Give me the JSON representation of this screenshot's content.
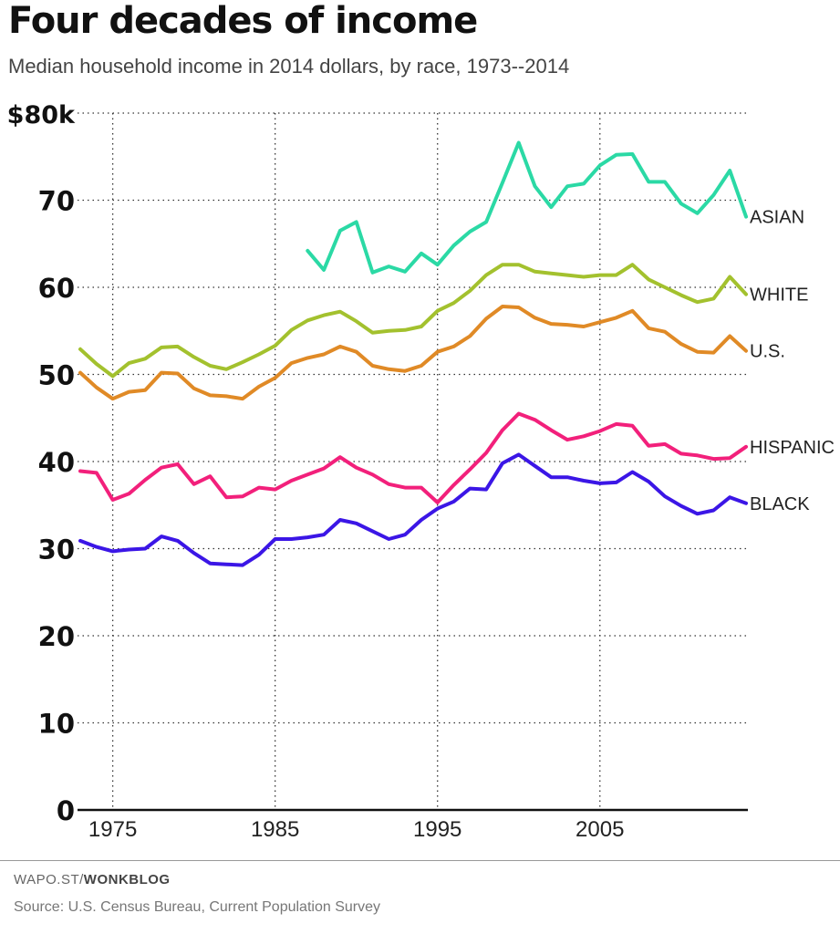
{
  "title": "Four decades of income",
  "subtitle": "Median household income in 2014 dollars, by race, 1973--2014",
  "footer": {
    "credit_prefix": "WAPO.ST/",
    "credit_bold": "WONKBLOG",
    "source": "Source: U.S. Census Bureau, Current Population Survey"
  },
  "chart_data": {
    "type": "line",
    "title": "Four decades of income",
    "subtitle": "Median household income in 2014 dollars, by race, 1973--2014",
    "xlabel": "",
    "ylabel": "",
    "xlim": [
      1973,
      2014
    ],
    "ylim": [
      0,
      80
    ],
    "grid": true,
    "legend": "direct labels at line ends (right)",
    "x_ticks": [
      1975,
      1985,
      1995,
      2005
    ],
    "x_tick_labels": [
      "1975",
      "1985",
      "1995",
      "2005"
    ],
    "y_ticks": [
      0,
      10,
      20,
      30,
      40,
      50,
      60,
      70,
      80
    ],
    "y_tick_labels": [
      "0",
      "10",
      "20",
      "30",
      "40",
      "50",
      "60",
      "70",
      "$80k"
    ],
    "series": [
      {
        "name": "ASIAN",
        "color": "#2bd9a5",
        "x": [
          1987,
          1988,
          1989,
          1990,
          1991,
          1992,
          1993,
          1994,
          1995,
          1996,
          1997,
          1998,
          1999,
          2000,
          2001,
          2002,
          2003,
          2004,
          2005,
          2006,
          2007,
          2008,
          2009,
          2010,
          2011,
          2012,
          2013,
          2014
        ],
        "values": [
          64.2,
          62.0,
          66.5,
          67.5,
          61.7,
          62.4,
          61.8,
          63.9,
          62.6,
          64.8,
          66.4,
          67.5,
          72.0,
          76.6,
          71.6,
          69.2,
          71.6,
          71.9,
          74.0,
          75.2,
          75.3,
          72.1,
          72.1,
          69.6,
          68.5,
          70.6,
          73.4,
          68.1
        ]
      },
      {
        "name": "WHITE",
        "color": "#a3c12e",
        "x": [
          1973,
          1974,
          1975,
          1976,
          1977,
          1978,
          1979,
          1980,
          1981,
          1982,
          1983,
          1984,
          1985,
          1986,
          1987,
          1988,
          1989,
          1990,
          1991,
          1992,
          1993,
          1994,
          1995,
          1996,
          1997,
          1998,
          1999,
          2000,
          2001,
          2002,
          2003,
          2004,
          2005,
          2006,
          2007,
          2008,
          2009,
          2010,
          2011,
          2012,
          2013,
          2014
        ],
        "values": [
          52.9,
          51.2,
          49.8,
          51.3,
          51.8,
          53.1,
          53.2,
          52.0,
          51.0,
          50.6,
          51.4,
          52.3,
          53.3,
          55.1,
          56.2,
          56.8,
          57.2,
          56.1,
          54.8,
          55.0,
          55.1,
          55.5,
          57.3,
          58.2,
          59.6,
          61.4,
          62.6,
          62.6,
          61.8,
          61.6,
          61.4,
          61.2,
          61.4,
          61.4,
          62.6,
          60.9,
          60.0,
          59.1,
          58.3,
          58.7,
          61.2,
          59.2
        ]
      },
      {
        "name": "U.S.",
        "color": "#e08a26",
        "x": [
          1973,
          1974,
          1975,
          1976,
          1977,
          1978,
          1979,
          1980,
          1981,
          1982,
          1983,
          1984,
          1985,
          1986,
          1987,
          1988,
          1989,
          1990,
          1991,
          1992,
          1993,
          1994,
          1995,
          1996,
          1997,
          1998,
          1999,
          2000,
          2001,
          2002,
          2003,
          2004,
          2005,
          2006,
          2007,
          2008,
          2009,
          2010,
          2011,
          2012,
          2013,
          2014
        ],
        "values": [
          50.2,
          48.5,
          47.2,
          48.0,
          48.2,
          50.2,
          50.1,
          48.4,
          47.6,
          47.5,
          47.2,
          48.6,
          49.6,
          51.3,
          51.9,
          52.3,
          53.2,
          52.6,
          51.0,
          50.6,
          50.4,
          51.0,
          52.6,
          53.2,
          54.4,
          56.4,
          57.8,
          57.7,
          56.5,
          55.8,
          55.7,
          55.5,
          56.0,
          56.5,
          57.3,
          55.3,
          54.9,
          53.5,
          52.6,
          52.5,
          54.4,
          52.7
        ]
      },
      {
        "name": "HISPANIC",
        "color": "#f2207b",
        "x": [
          1973,
          1974,
          1975,
          1976,
          1977,
          1978,
          1979,
          1980,
          1981,
          1982,
          1983,
          1984,
          1985,
          1986,
          1987,
          1988,
          1989,
          1990,
          1991,
          1992,
          1993,
          1994,
          1995,
          1996,
          1997,
          1998,
          1999,
          2000,
          2001,
          2002,
          2003,
          2004,
          2005,
          2006,
          2007,
          2008,
          2009,
          2010,
          2011,
          2012,
          2013,
          2014
        ],
        "values": [
          38.9,
          38.7,
          35.6,
          36.3,
          37.9,
          39.3,
          39.7,
          37.4,
          38.3,
          35.9,
          36.0,
          37.0,
          36.8,
          37.8,
          38.5,
          39.2,
          40.5,
          39.3,
          38.5,
          37.4,
          37.0,
          37.0,
          35.3,
          37.3,
          39.1,
          41.0,
          43.6,
          45.5,
          44.8,
          43.6,
          42.5,
          42.9,
          43.5,
          44.3,
          44.1,
          41.8,
          42.0,
          40.9,
          40.7,
          40.3,
          40.4,
          41.7
        ]
      },
      {
        "name": "BLACK",
        "color": "#3b16e6",
        "x": [
          1973,
          1974,
          1975,
          1976,
          1977,
          1978,
          1979,
          1980,
          1981,
          1982,
          1983,
          1984,
          1985,
          1986,
          1987,
          1988,
          1989,
          1990,
          1991,
          1992,
          1993,
          1994,
          1995,
          1996,
          1997,
          1998,
          1999,
          2000,
          2001,
          2002,
          2003,
          2004,
          2005,
          2006,
          2007,
          2008,
          2009,
          2010,
          2011,
          2012,
          2013,
          2014
        ],
        "values": [
          30.9,
          30.2,
          29.7,
          29.9,
          30.0,
          31.4,
          30.9,
          29.5,
          28.3,
          28.2,
          28.1,
          29.3,
          31.1,
          31.1,
          31.3,
          31.6,
          33.3,
          32.9,
          32.0,
          31.1,
          31.6,
          33.3,
          34.6,
          35.4,
          36.9,
          36.8,
          39.8,
          40.8,
          39.5,
          38.2,
          38.2,
          37.8,
          37.5,
          37.6,
          38.8,
          37.7,
          36.0,
          34.9,
          34.0,
          34.4,
          35.9,
          35.2
        ]
      }
    ]
  }
}
